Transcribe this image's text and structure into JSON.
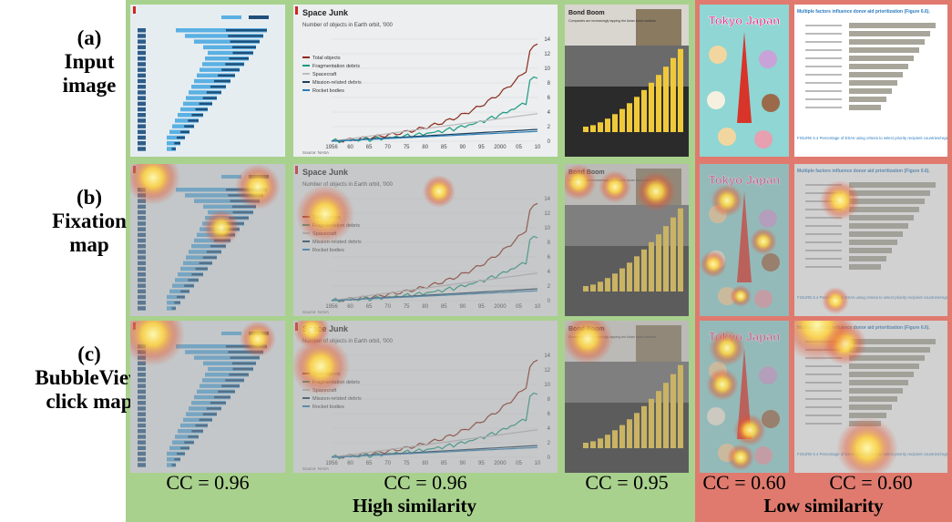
{
  "row_labels": [
    [
      "(a)",
      "Input",
      "image"
    ],
    [
      "(b)",
      "Fixation",
      "map"
    ],
    [
      "(c)",
      "BubbleView",
      "click map"
    ]
  ],
  "scores": [
    "CC = 0.96",
    "CC = 0.96",
    "CC = 0.95",
    "CC = 0.60",
    "CC = 0.60"
  ],
  "groups": [
    "High similarity",
    "Low similarity"
  ],
  "thumbnails": {
    "space_junk": {
      "title": "Space Junk",
      "subtitle": "Number of objects in Earth orbit, '000",
      "legend": [
        "Total objects",
        "Fragmentation debris",
        "Spacecraft",
        "Mission-related debris",
        "Rocket bodies"
      ],
      "xticks": [
        "1956",
        "60",
        "65",
        "70",
        "75",
        "80",
        "85",
        "90",
        "95",
        "2000",
        "05",
        "10"
      ],
      "yticks": [
        "14",
        "12",
        "10",
        "8",
        "6",
        "4",
        "2",
        "0"
      ],
      "source": "Source: NASA"
    },
    "bond_boom": {
      "title": "Bond Boom",
      "subtitle": "Companies are increasingly tapping the Asian bond markets"
    },
    "tokyo": {
      "title": "Tokyo Japan"
    },
    "donor": {
      "title": "Multiple factors influence donor aid prioritization (Figure 6.6).",
      "caption": "FIGURE 6.4 Percentage of ESAs using criteria to select priority recipient countries/regions"
    }
  }
}
